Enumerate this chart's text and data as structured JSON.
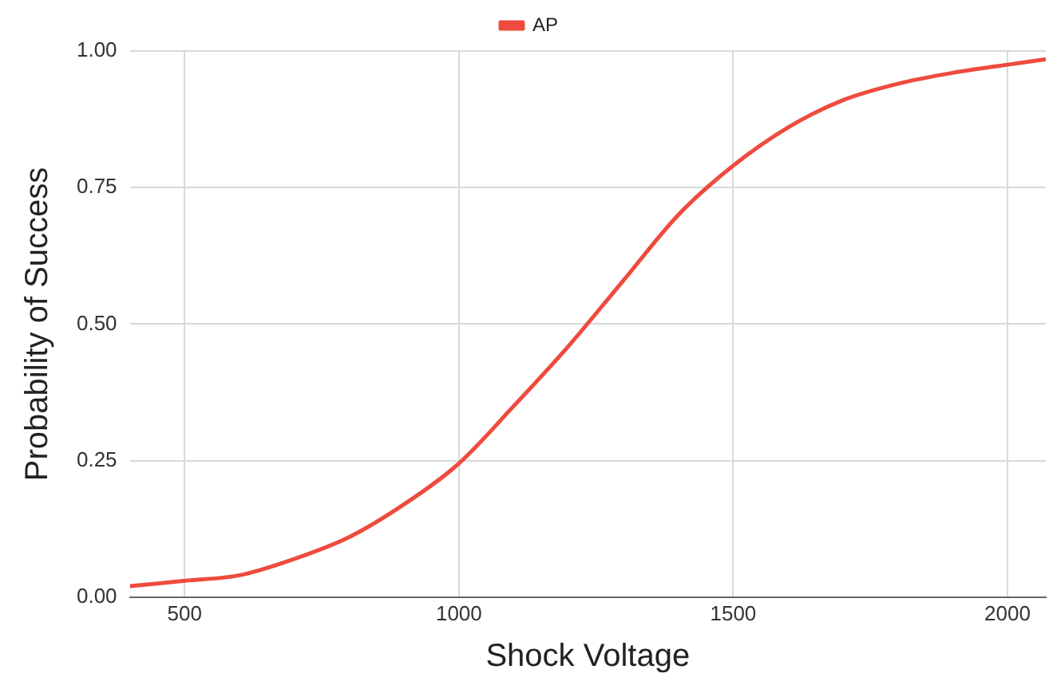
{
  "chart_data": {
    "type": "line",
    "xlabel": "Shock Voltage",
    "ylabel": "Probability of Success",
    "x": [
      400,
      500,
      600,
      700,
      800,
      900,
      1000,
      1100,
      1200,
      1300,
      1400,
      1500,
      1600,
      1700,
      1800,
      1900,
      2000,
      2070
    ],
    "series": [
      {
        "name": "AP",
        "color": "#ee4b3e",
        "values": [
          0.02,
          0.03,
          0.04,
          0.07,
          0.11,
          0.17,
          0.245,
          0.35,
          0.46,
          0.58,
          0.7,
          0.79,
          0.86,
          0.91,
          0.94,
          0.96,
          0.975,
          0.985
        ]
      }
    ],
    "xlim": [
      400,
      2070
    ],
    "xticks": [
      500,
      1000,
      1500,
      2000
    ],
    "ylim": [
      0,
      1
    ],
    "yticks": [
      {
        "value": 0,
        "label": "0.00"
      },
      {
        "value": 0.25,
        "label": "0.25"
      },
      {
        "value": 0.5,
        "label": "0.50"
      },
      {
        "value": 0.75,
        "label": "0.75"
      },
      {
        "value": 1,
        "label": "1.00"
      }
    ],
    "grid": true,
    "legend": "top",
    "marker": "none",
    "line_style": "solid"
  }
}
